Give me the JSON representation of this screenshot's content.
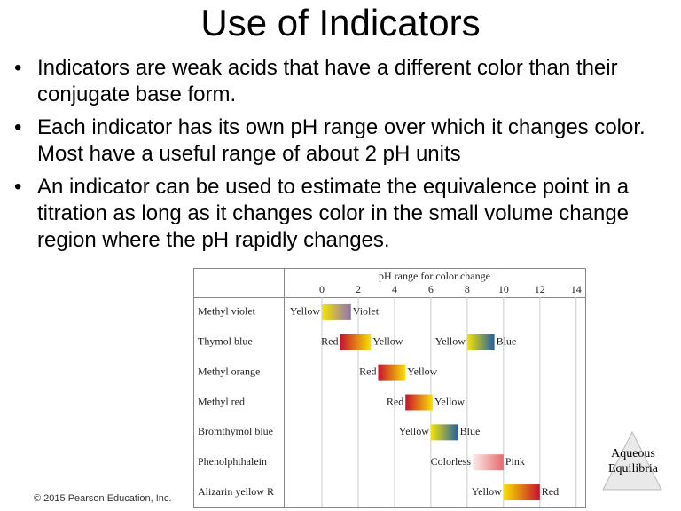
{
  "title": "Use of Indicators",
  "bullets": [
    "Indicators are weak acids that have a different color than their conjugate base form.",
    "Each indicator has its own pH range over which it changes color. Most have a useful range of about 2 pH units",
    "An indicator can be used to estimate the equivalence point in a titration as long as it changes color in the small volume change region where the pH rapidly changes."
  ],
  "copyright": "© 2015 Pearson Education, Inc.",
  "badge": "Aqueous Equilibria",
  "chart_data": {
    "type": "range",
    "title": "pH range for color change",
    "xlim": [
      -2.1,
      14.5
    ],
    "xticks": [
      0,
      2,
      4,
      6,
      8,
      10,
      12,
      14
    ],
    "grid": true,
    "categories": [
      "Methyl violet",
      "Thymol blue",
      "Methyl orange",
      "Methyl red",
      "Bromthymol blue",
      "Phenolphthalein",
      "Alizarin yellow R"
    ],
    "ranges": [
      [
        {
          "low": 0.0,
          "high": 1.6,
          "low_label": "Yellow",
          "high_label": "Violet",
          "low_color": "#f6e400",
          "high_color": "#8f72b8"
        }
      ],
      [
        {
          "low": 1.0,
          "high": 2.7,
          "low_label": "Red",
          "high_label": "Yellow",
          "low_color": "#c8102e",
          "high_color": "#f6e400"
        },
        {
          "low": 8.0,
          "high": 9.5,
          "low_label": "Yellow",
          "high_label": "Blue",
          "low_color": "#f6e400",
          "high_color": "#1f5fa8"
        }
      ],
      [
        {
          "low": 3.1,
          "high": 4.6,
          "low_label": "Red",
          "high_label": "Yellow",
          "low_color": "#c8102e",
          "high_color": "#f6e400"
        }
      ],
      [
        {
          "low": 4.6,
          "high": 6.1,
          "low_label": "Red",
          "high_label": "Yellow",
          "low_color": "#c8102e",
          "high_color": "#f6e400"
        }
      ],
      [
        {
          "low": 6.0,
          "high": 7.5,
          "low_label": "Yellow",
          "high_label": "Blue",
          "low_color": "#f6e400",
          "high_color": "#1f5fa8"
        }
      ],
      [
        {
          "low": 8.3,
          "high": 10.0,
          "low_label": "Colorless",
          "high_label": "Pink",
          "low_color": "#fcecec",
          "high_color": "#e8696b"
        }
      ],
      [
        {
          "low": 10.0,
          "high": 12.0,
          "low_label": "Yellow",
          "high_label": "Red",
          "low_color": "#f6e400",
          "high_color": "#c8102e"
        }
      ]
    ]
  }
}
